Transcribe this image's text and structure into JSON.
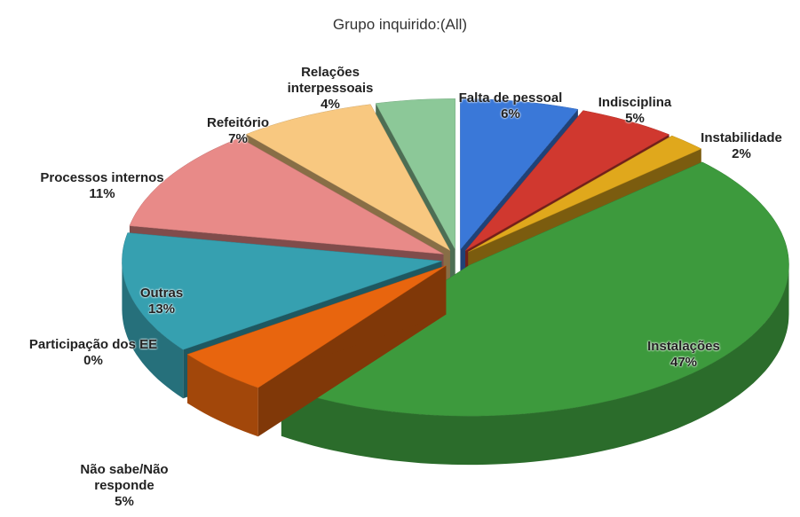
{
  "chart_data": {
    "type": "pie",
    "title": "Grupo inquirido:(All)",
    "categories": [
      "Falta de pessoal",
      "Indisciplina",
      "Instabilidade",
      "Instalações",
      "Não sabe/Não responde",
      "Participação dos EE",
      "Outras",
      "Processos internos",
      "Refeitório",
      "Relações interpessoais"
    ],
    "values": [
      6,
      5,
      2,
      47,
      5,
      0,
      13,
      11,
      7,
      4
    ],
    "value_labels": [
      "6%",
      "5%",
      "2%",
      "47%",
      "5%",
      "0%",
      "13%",
      "11%",
      "7%",
      "4%"
    ],
    "colors": [
      "#3a78d8",
      "#d0382f",
      "#e0a81c",
      "#3d9a3d",
      "#e8650e",
      "#5060b8",
      "#36a0b0",
      "#e88a88",
      "#f8c880",
      "#8cc898"
    ]
  }
}
